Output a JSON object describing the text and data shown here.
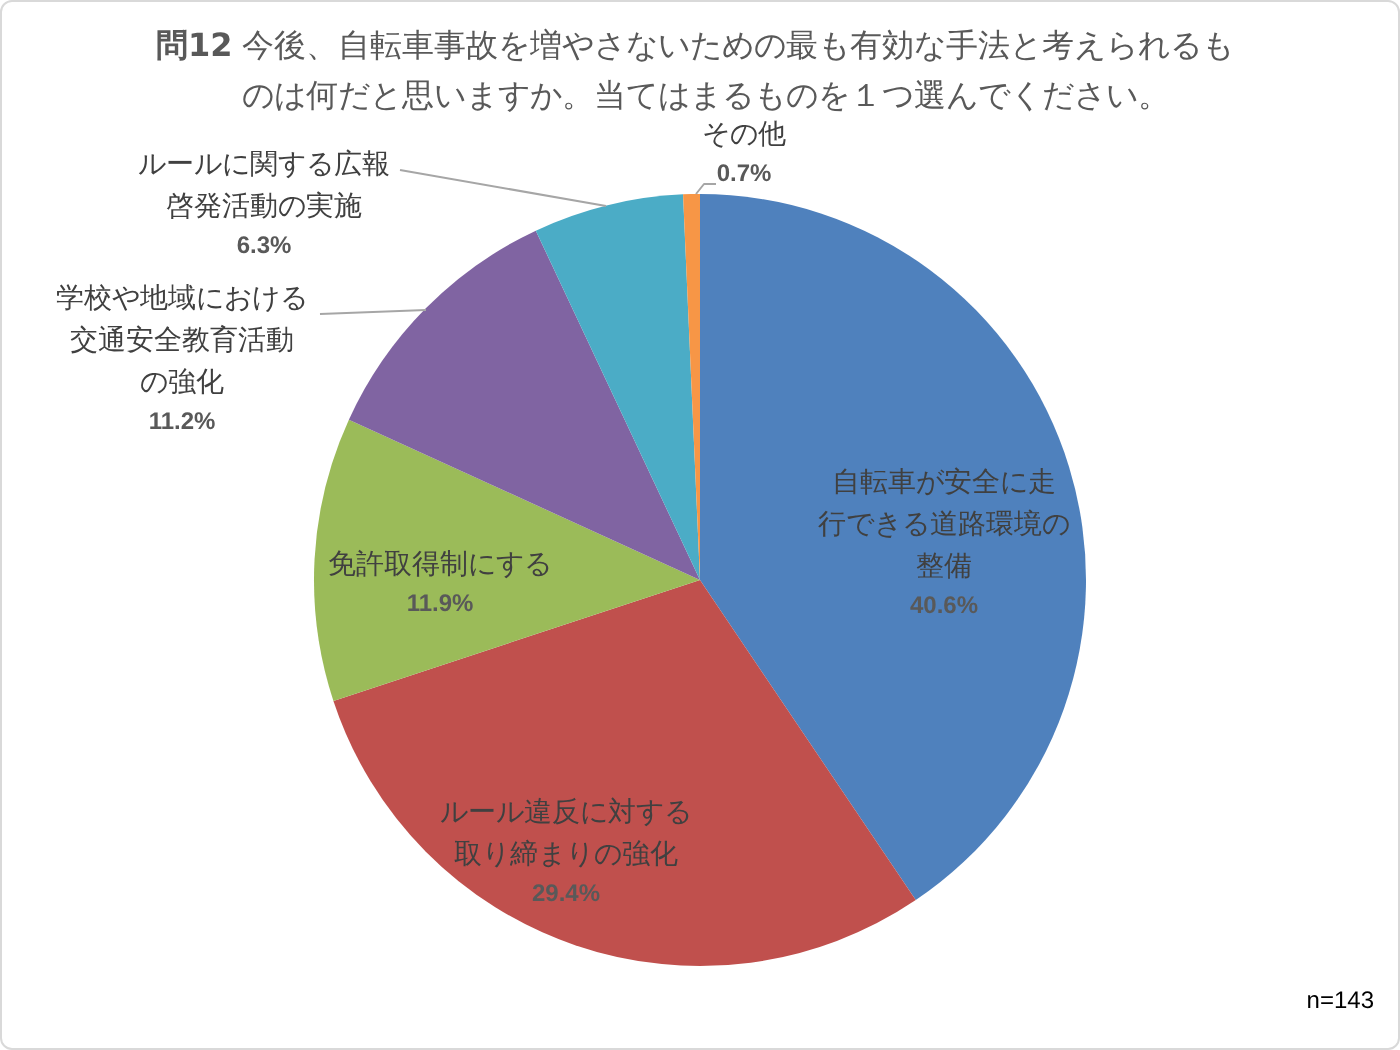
{
  "chart_data": {
    "type": "pie",
    "title": "問12 今後、自転車事故を増やさないための最も有効な手法と考えられるものは何だと思いますか。当てはまるものを１つ選んでください。",
    "categories": [
      "自転車が安全に走行できる道路環境の整備",
      "ルール違反に対する取り締まりの強化",
      "免許取得制にする",
      "学校や地域における交通安全教育活動の強化",
      "ルールに関する広報啓発活動の実施",
      "その他"
    ],
    "values": [
      40.6,
      29.4,
      11.9,
      11.2,
      6.3,
      0.7
    ],
    "colors": [
      "#4f81bd",
      "#c0504d",
      "#9bbb59",
      "#8064a2",
      "#4bacc6",
      "#f79646"
    ],
    "value_labels": [
      "40.6%",
      "29.4%",
      "11.9%",
      "11.2%",
      "6.3%",
      "0.7%"
    ],
    "annotations": [
      "n=143"
    ]
  }
}
